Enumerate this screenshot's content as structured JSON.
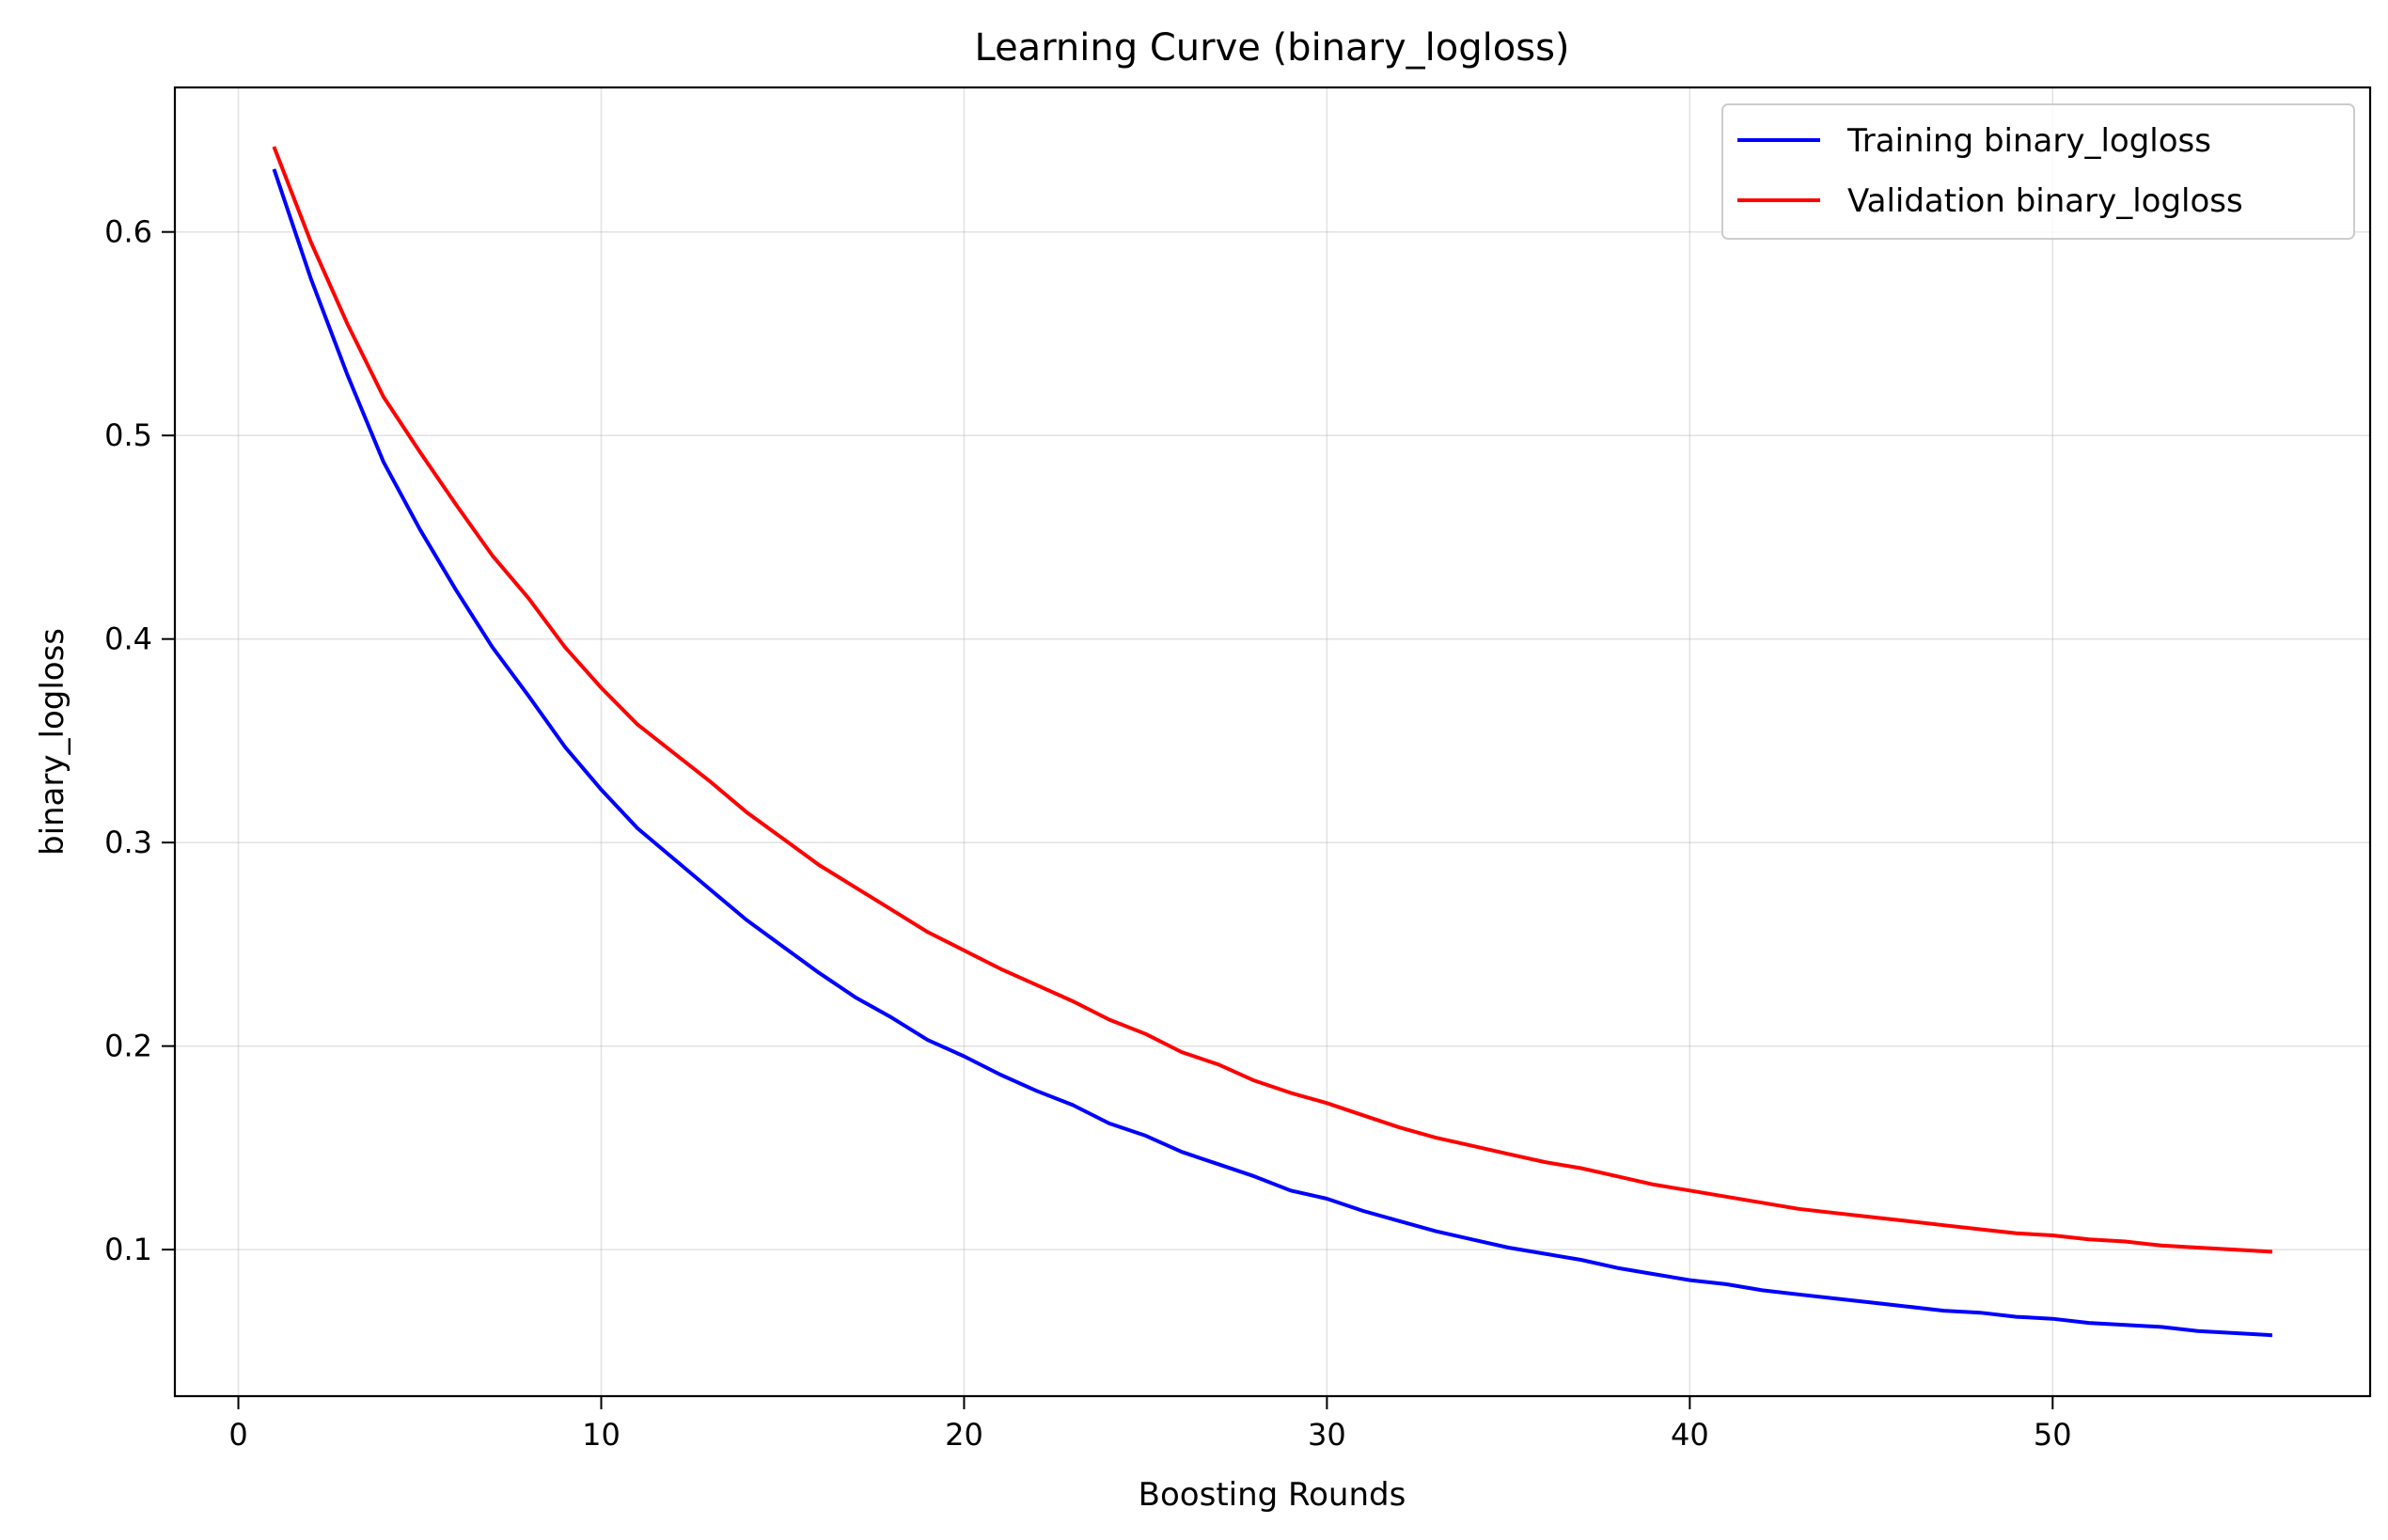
{
  "chart_data": {
    "type": "line",
    "title": "Learning Curve (binary_logloss)",
    "xlabel": "Boosting Rounds",
    "ylabel": "binary_logloss",
    "xlim": [
      -1.75,
      58.75
    ],
    "ylim": [
      0.028,
      0.671
    ],
    "xticks": [
      0,
      10,
      20,
      30,
      40,
      50
    ],
    "yticks": [
      0.1,
      0.2,
      0.3,
      0.4,
      0.5,
      0.6
    ],
    "xtick_labels": [
      "0",
      "10",
      "20",
      "30",
      "40",
      "50"
    ],
    "ytick_labels": [
      "0.1",
      "0.2",
      "0.3",
      "0.4",
      "0.5",
      "0.6"
    ],
    "grid": true,
    "legend_position": "top-right",
    "x": [
      1,
      2,
      3,
      4,
      5,
      6,
      7,
      8,
      9,
      10,
      11,
      12,
      13,
      14,
      15,
      16,
      17,
      18,
      19,
      20,
      21,
      22,
      23,
      24,
      25,
      26,
      27,
      28,
      29,
      30,
      31,
      32,
      33,
      34,
      35,
      36,
      37,
      38,
      39,
      40,
      41,
      42,
      43,
      44,
      45,
      46,
      47,
      48,
      49,
      50,
      51,
      52,
      53,
      54,
      55,
      56
    ],
    "series": [
      {
        "name": "Training binary_logloss",
        "color": "#0000ff",
        "values": [
          0.63,
          0.577,
          0.53,
          0.487,
          0.454,
          0.424,
          0.396,
          0.372,
          0.347,
          0.326,
          0.307,
          0.292,
          0.277,
          0.262,
          0.249,
          0.236,
          0.224,
          0.214,
          0.203,
          0.195,
          0.186,
          0.178,
          0.171,
          0.162,
          0.156,
          0.148,
          0.142,
          0.136,
          0.129,
          0.125,
          0.119,
          0.114,
          0.109,
          0.105,
          0.101,
          0.098,
          0.095,
          0.091,
          0.088,
          0.085,
          0.083,
          0.08,
          0.078,
          0.076,
          0.074,
          0.072,
          0.07,
          0.069,
          0.067,
          0.066,
          0.064,
          0.063,
          0.062,
          0.06,
          0.059,
          0.058
        ]
      },
      {
        "name": "Validation binary_logloss",
        "color": "#ff0000",
        "values": [
          0.641,
          0.595,
          0.555,
          0.519,
          0.492,
          0.466,
          0.441,
          0.42,
          0.396,
          0.376,
          0.358,
          0.344,
          0.33,
          0.315,
          0.302,
          0.289,
          0.278,
          0.267,
          0.256,
          0.247,
          0.238,
          0.23,
          0.222,
          0.213,
          0.206,
          0.197,
          0.191,
          0.183,
          0.177,
          0.172,
          0.166,
          0.16,
          0.155,
          0.151,
          0.147,
          0.143,
          0.14,
          0.136,
          0.132,
          0.129,
          0.126,
          0.123,
          0.12,
          0.118,
          0.116,
          0.114,
          0.112,
          0.11,
          0.108,
          0.107,
          0.105,
          0.104,
          0.102,
          0.101,
          0.1,
          0.099
        ]
      }
    ]
  }
}
